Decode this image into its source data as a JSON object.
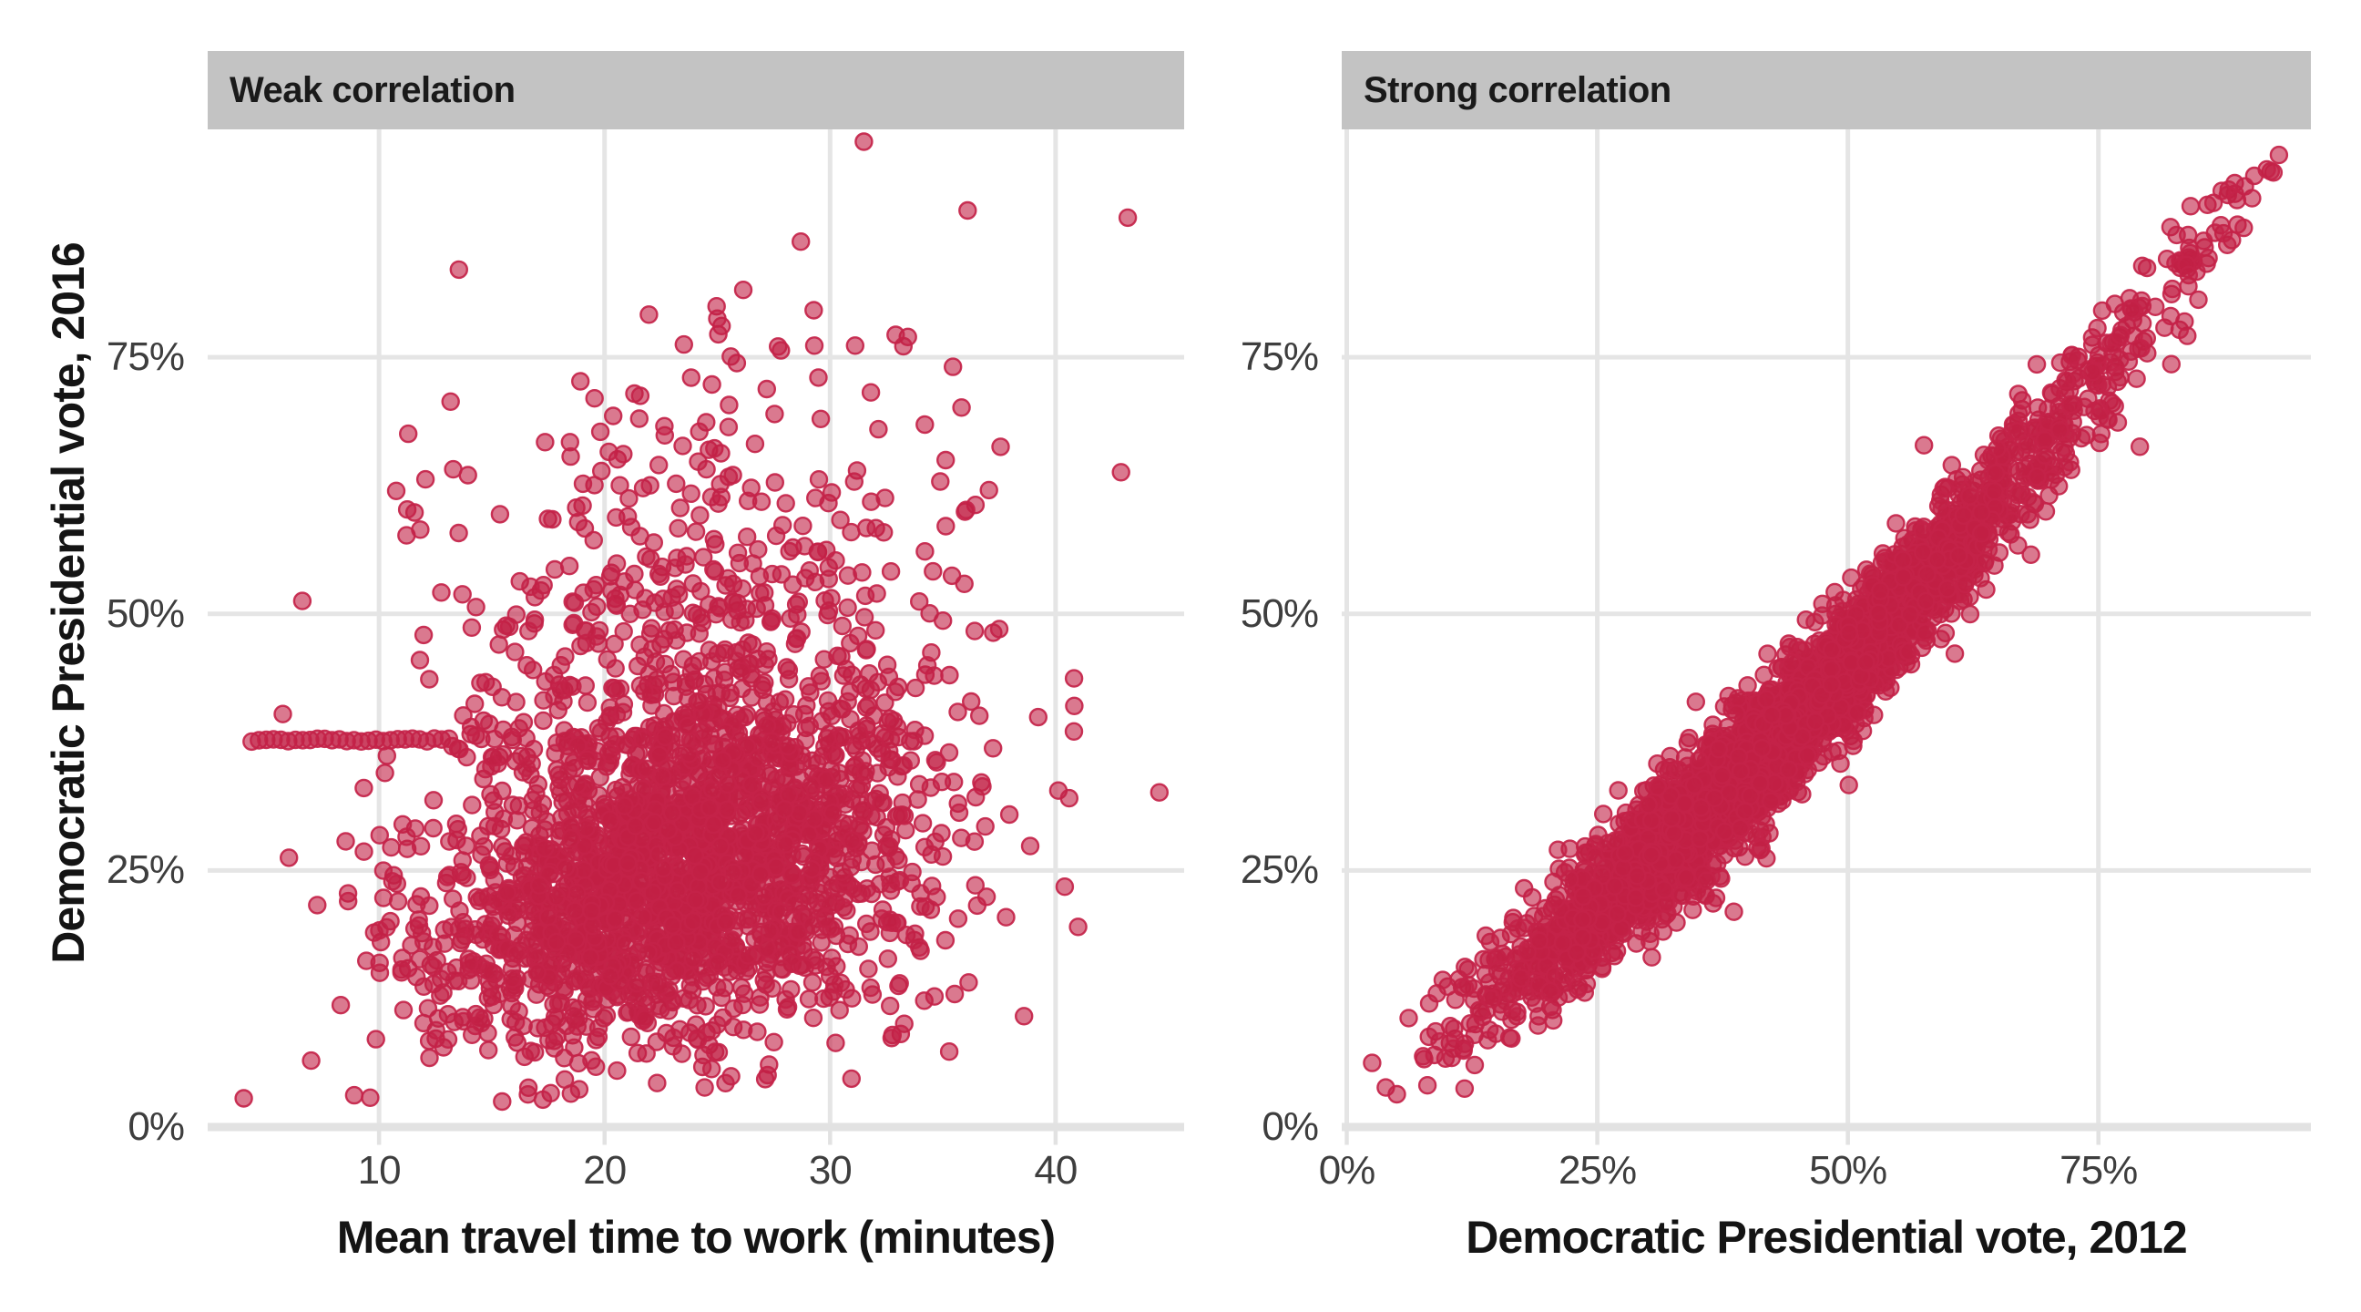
{
  "style": {
    "background": "#ffffff",
    "strip_bg": "#c3c3c3",
    "strip_text": "#1a1a1a",
    "grid_line": "#e5e5e5",
    "axis_line": "#e2e2e2",
    "tick_mark": "#e2e2e2",
    "tick_text": "#3e3e3e",
    "title_text": "#141414",
    "point_fill": "#c21f45",
    "point_stroke": "#c42349"
  },
  "chart_data": [
    {
      "type": "scatter",
      "facet": "Weak correlation",
      "xlabel": "Mean travel time to work (minutes)",
      "ylabel": "Democratic Presidential vote, 2016",
      "xlim": [
        2.4,
        45.7
      ],
      "ylim": [
        0,
        97.2
      ],
      "x_ticks": [
        10,
        20,
        30,
        40
      ],
      "x_tick_labels": [
        "10",
        "20",
        "30",
        "40"
      ],
      "y_ticks": [
        0,
        25,
        50,
        75
      ],
      "y_tick_labels": [
        "0%",
        "25%",
        "50%",
        "75%"
      ],
      "grid": "on",
      "legend": "none",
      "n_points": 2630,
      "marker": {
        "radius_px": 9,
        "fill_opacity": 0.6,
        "stroke_opacity": 0.92,
        "stroke_width_px": 2.4
      },
      "generator": {
        "seed": 20161108,
        "x_mean": 23.1,
        "x_sd": 5.7,
        "x_range": [
          4.2,
          45.6
        ],
        "base": 22.5,
        "slope_per_minute": 0.5,
        "core_mean": 2,
        "core_sd": 8.3,
        "tail_prob": 0.24,
        "tail_mean": 21,
        "tail_sd": 15,
        "y_range": [
          2.4,
          94
        ]
      },
      "horizontal_streak": {
        "y_percent": 37.7,
        "x_start_minutes": 4.35,
        "x_end_minutes": 13.1,
        "n": 28
      },
      "feature_points": [
        [
          31.5,
          96.0
        ],
        [
          36.1,
          89.3
        ],
        [
          43.2,
          88.6
        ],
        [
          42.9,
          63.8
        ],
        [
          44.6,
          32.6
        ],
        [
          41.0,
          19.5
        ],
        [
          38.6,
          10.8
        ],
        [
          4.0,
          2.8
        ],
        [
          8.9,
          3.1
        ]
      ],
      "summary": "County-level scatter: mean commute time vs 2016 Democratic vote share shows little correlation; dense cloud centered near 23 minutes and 15-35% vote with diffuse upper tail to ~90%, plus a flat streak of counties at exactly ~38% between 4 and 13 minutes."
    },
    {
      "type": "scatter",
      "facet": "Strong correlation",
      "xlabel": "Democratic Presidential vote, 2012",
      "ylabel": "Democratic Presidential vote, 2016",
      "xlim": [
        -0.5,
        96.2
      ],
      "ylim": [
        0,
        97.2
      ],
      "x_ticks": [
        0,
        25,
        50,
        75
      ],
      "x_tick_labels": [
        "0%",
        "25%",
        "50%",
        "75%"
      ],
      "y_ticks": [
        0,
        25,
        50,
        75
      ],
      "y_tick_labels": [
        "0%",
        "25%",
        "50%",
        "75%"
      ],
      "grid": "on",
      "legend": "none",
      "n_points": 3330,
      "marker": {
        "radius_px": 9,
        "fill_opacity": 0.6,
        "stroke_opacity": 0.92,
        "stroke_width_px": 2.4
      },
      "generator": {
        "seed": 20121106,
        "x_main_mean": 40,
        "x_main_sd": 12.5,
        "x_main_prob": 0.8,
        "x_alt_mean": 58,
        "x_alt_sd": 18,
        "x_range": [
          2.5,
          93.2
        ],
        "curve": "y = x - 5*sin(pi*(x-5)/80)",
        "noise_sd": 3.1,
        "outlier_prob": 0.004,
        "outlier_shift_min": 7,
        "outlier_shift_max": 16,
        "y_range": [
          2.4,
          95.5
        ]
      },
      "feature_points": [
        [
          91.8,
          93.3
        ],
        [
          89.5,
          87.6
        ],
        [
          87.3,
          91.2
        ],
        [
          84.0,
          83.0
        ],
        [
          25.6,
          30.5
        ],
        [
          5.0,
          3.2
        ],
        [
          8.2,
          8.8
        ]
      ],
      "summary": "County-level scatter: 2012 vs 2016 Democratic vote share are strongly correlated, forming a tight slightly S-shaped diagonal band from about (5%,4%) to (93%,93%), densest between 25% and 60%."
    }
  ]
}
